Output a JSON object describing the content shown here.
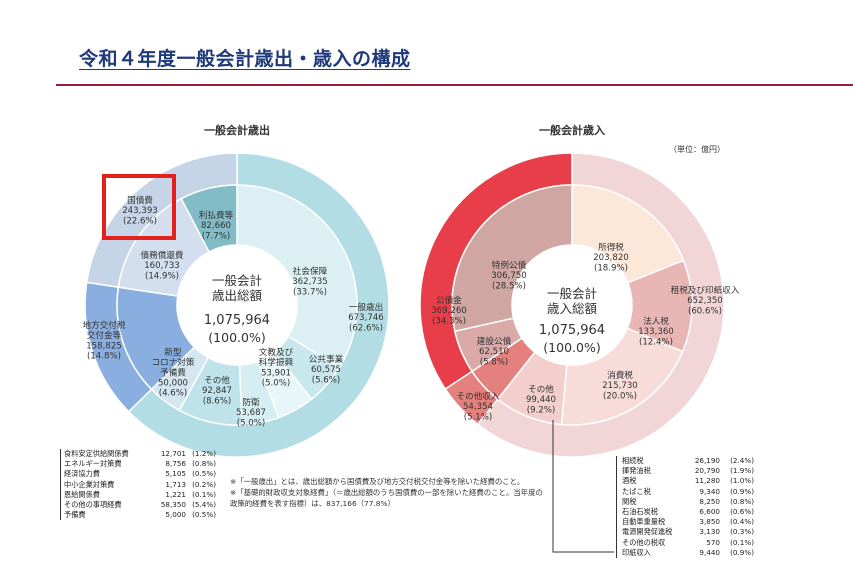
{
  "page": {
    "title": "令和４年度一般会計歳出・歳入の構成",
    "unit": "（単位：億円）"
  },
  "colors": {
    "accent": "#9c1b3a",
    "title": "#1f3a7a",
    "highlight": "#e3201b"
  },
  "chart_data": [
    {
      "type": "pie",
      "title": "一般会計歳出",
      "center": {
        "line1": "一般会計",
        "line2": "歳出総額",
        "value": "1,075,964",
        "pct": "(100.0%)"
      },
      "outer": [
        {
          "label": "一般歳出",
          "value": 673746,
          "value_text": "673,746",
          "pct": "(62.6%)"
        },
        {
          "label": "地方交付税交付金等",
          "value": 158825,
          "value_text": "158,825",
          "pct": "(14.8%)"
        },
        {
          "label": "国債費",
          "value": 243393,
          "value_text": "243,393",
          "pct": "(22.6%)"
        }
      ],
      "inner": [
        {
          "label": "社会保障",
          "value": 362735,
          "value_text": "362,735",
          "pct": "(33.7%)"
        },
        {
          "label": "公共事業",
          "value": 60575,
          "value_text": "60,575",
          "pct": "(5.6%)"
        },
        {
          "label": "文教及び科学振興",
          "value": 53901,
          "value_text": "53,901",
          "pct": "(5.0%)"
        },
        {
          "label": "防衛",
          "value": 53687,
          "value_text": "53,687",
          "pct": "(5.0%)"
        },
        {
          "label": "その他",
          "value": 92847,
          "value_text": "92,847",
          "pct": "(8.6%)"
        },
        {
          "label": "新型コロナ対策予備費",
          "value": 50000,
          "value_text": "50,000",
          "pct": "(4.6%)"
        },
        {
          "label": "地方交付税交付金等",
          "value": 158825
        },
        {
          "label": "債務償還費",
          "value": 160733,
          "value_text": "160,733",
          "pct": "(14.9%)"
        },
        {
          "label": "利払費等",
          "value": 82660,
          "value_text": "82,660",
          "pct": "(7.7%)"
        }
      ],
      "detail": [
        {
          "label": "食料安定供給関係費",
          "value": "12,701",
          "pct": "(1.2%)"
        },
        {
          "label": "エネルギー対策費",
          "value": "8,756",
          "pct": "(0.8%)"
        },
        {
          "label": "経済協力費",
          "value": "5,105",
          "pct": "(0.5%)"
        },
        {
          "label": "中小企業対策費",
          "value": "1,713",
          "pct": "(0.2%)"
        },
        {
          "label": "恩給関係費",
          "value": "1,221",
          "pct": "(0.1%)"
        },
        {
          "label": "その他の事項経費",
          "value": "58,350",
          "pct": "(5.4%)"
        },
        {
          "label": "予備費",
          "value": "5,000",
          "pct": "(0.5%)"
        }
      ]
    },
    {
      "type": "pie",
      "title": "一般会計歳入",
      "center": {
        "line1": "一般会計",
        "line2": "歳入総額",
        "value": "1,075,964",
        "pct": "(100.0%)"
      },
      "outer": [
        {
          "label": "租税及び印紙収入",
          "value": 652350,
          "value_text": "652,350",
          "pct": "(60.6%)"
        },
        {
          "label": "その他収入",
          "value": 54354,
          "value_text": "54,354",
          "pct": "(5.1%)"
        },
        {
          "label": "公債金",
          "value": 369260,
          "value_text": "369,260",
          "pct": "(34.3%)"
        }
      ],
      "inner": [
        {
          "label": "所得税",
          "value": 203820,
          "value_text": "203,820",
          "pct": "(18.9%)"
        },
        {
          "label": "法人税",
          "value": 133360,
          "value_text": "133,360",
          "pct": "(12.4%)"
        },
        {
          "label": "消費税",
          "value": 215730,
          "value_text": "215,730",
          "pct": "(20.0%)"
        },
        {
          "label": "その他",
          "value": 99440,
          "value_text": "99,440",
          "pct": "(9.2%)"
        },
        {
          "label": "その他収入",
          "value": 54354
        },
        {
          "label": "建設公債",
          "value": 62510,
          "value_text": "62,510",
          "pct": "(5.8%)"
        },
        {
          "label": "特例公債",
          "value": 306750,
          "value_text": "306,750",
          "pct": "(28.5%)"
        }
      ],
      "detail": [
        {
          "label": "相続税",
          "value": "26,190",
          "pct": "(2.4%)"
        },
        {
          "label": "揮発油税",
          "value": "20,790",
          "pct": "(1.9%)"
        },
        {
          "label": "酒税",
          "value": "11,280",
          "pct": "(1.0%)"
        },
        {
          "label": "たばこ税",
          "value": "9,340",
          "pct": "(0.9%)"
        },
        {
          "label": "関税",
          "value": "8,250",
          "pct": "(0.8%)"
        },
        {
          "label": "石油石炭税",
          "value": "6,600",
          "pct": "(0.6%)"
        },
        {
          "label": "自動車重量税",
          "value": "3,850",
          "pct": "(0.4%)"
        },
        {
          "label": "電源開発促進税",
          "value": "3,130",
          "pct": "(0.3%)"
        },
        {
          "label": "その他の税収",
          "value": "570",
          "pct": "(0.1%)"
        },
        {
          "label": "印紙収入",
          "value": "9,440",
          "pct": "(0.9%)"
        }
      ]
    }
  ],
  "notes": [
    "※「一般歳出」とは、歳出総額から国債費及び地方交付税交付金等を除いた経費のこと。",
    "※「基礎的財政収支対象経費」（＝歳出総額のうち国債費の一部を除いた経費のこと。当年度の政策的経費を表す指標）は、837,166（77.8%）"
  ]
}
